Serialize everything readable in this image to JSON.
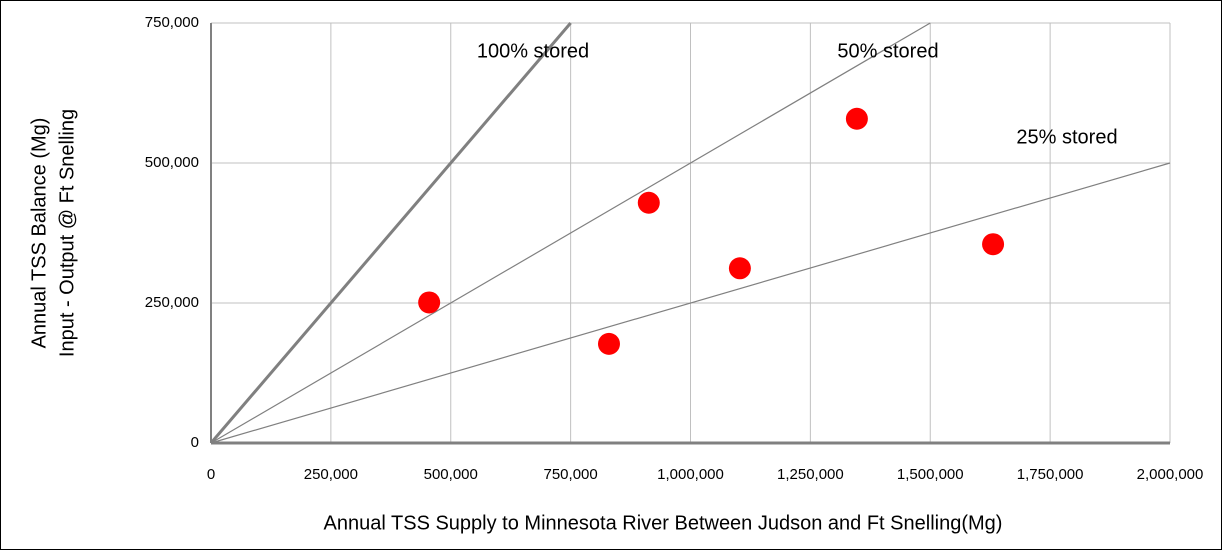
{
  "chart_data": {
    "type": "scatter",
    "xlabel": "Annual TSS Supply to Minnesota River Between Judson and Ft Snelling(Mg)",
    "ylabel": [
      "Annual TSS Balance  (Mg)",
      "Input - Output @ Ft Snelling"
    ],
    "xlim": [
      0,
      2000000
    ],
    "ylim": [
      0,
      750000
    ],
    "xticks": [
      0,
      {
        "value": 250000,
        "label": "250,000"
      },
      {
        "value": 500000,
        "label": "500,000"
      },
      {
        "value": 750000,
        "label": "750,000"
      },
      {
        "value": 1000000,
        "label": "1,000,000"
      },
      {
        "value": 1250000,
        "label": "1,250,000"
      },
      {
        "value": 1500000,
        "label": "1,500,000"
      },
      {
        "value": 1750000,
        "label": "1,750,000"
      },
      {
        "value": 2000000,
        "label": "2,000,000"
      }
    ],
    "yticks": [
      0,
      {
        "value": 250000,
        "label": "250,000"
      },
      {
        "value": 500000,
        "label": "500,000"
      },
      {
        "value": 750000,
        "label": "750,000"
      }
    ],
    "grid": true,
    "series": [
      {
        "color": "#ff0000",
        "x": [
          455000,
          830000,
          913000,
          1103000,
          1347000,
          1631000
        ],
        "values": [
          251000,
          177000,
          429000,
          312000,
          579000,
          355000
        ]
      }
    ],
    "reference_lines": [
      {
        "label": "100% stored",
        "fraction": 1
      },
      {
        "label": "50% stored",
        "fraction": 0.5
      },
      {
        "label": "25% stored",
        "fraction": 0.25
      }
    ]
  }
}
